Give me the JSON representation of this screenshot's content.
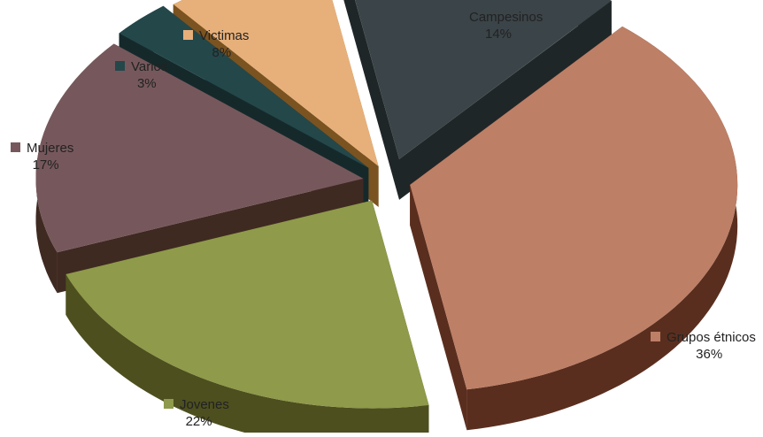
{
  "chart_data": {
    "type": "pie",
    "title": "",
    "exploded": true,
    "three_d": true,
    "slices": [
      {
        "label": "Campesinos",
        "value": 14,
        "percent_label": "14%",
        "color": "#3b4448",
        "side_color": "#1f2628"
      },
      {
        "label": "Grupos étnicos",
        "value": 36,
        "percent_label": "36%",
        "color": "#bd7f66",
        "side_color": "#5a2e1e"
      },
      {
        "label": "Jovenes",
        "value": 22,
        "percent_label": "22%",
        "color": "#8f9a4a",
        "side_color": "#4d4f1f"
      },
      {
        "label": "Mujeres",
        "value": 17,
        "percent_label": "17%",
        "color": "#76585c",
        "side_color": "#3f2a22"
      },
      {
        "label": "Varios",
        "value": 3,
        "percent_label": "3%",
        "color": "#24474a",
        "side_color": "#15292b"
      },
      {
        "label": "Victimas",
        "value": 8,
        "percent_label": "8%",
        "color": "#e7b07a",
        "side_color": "#7b5320"
      }
    ]
  }
}
